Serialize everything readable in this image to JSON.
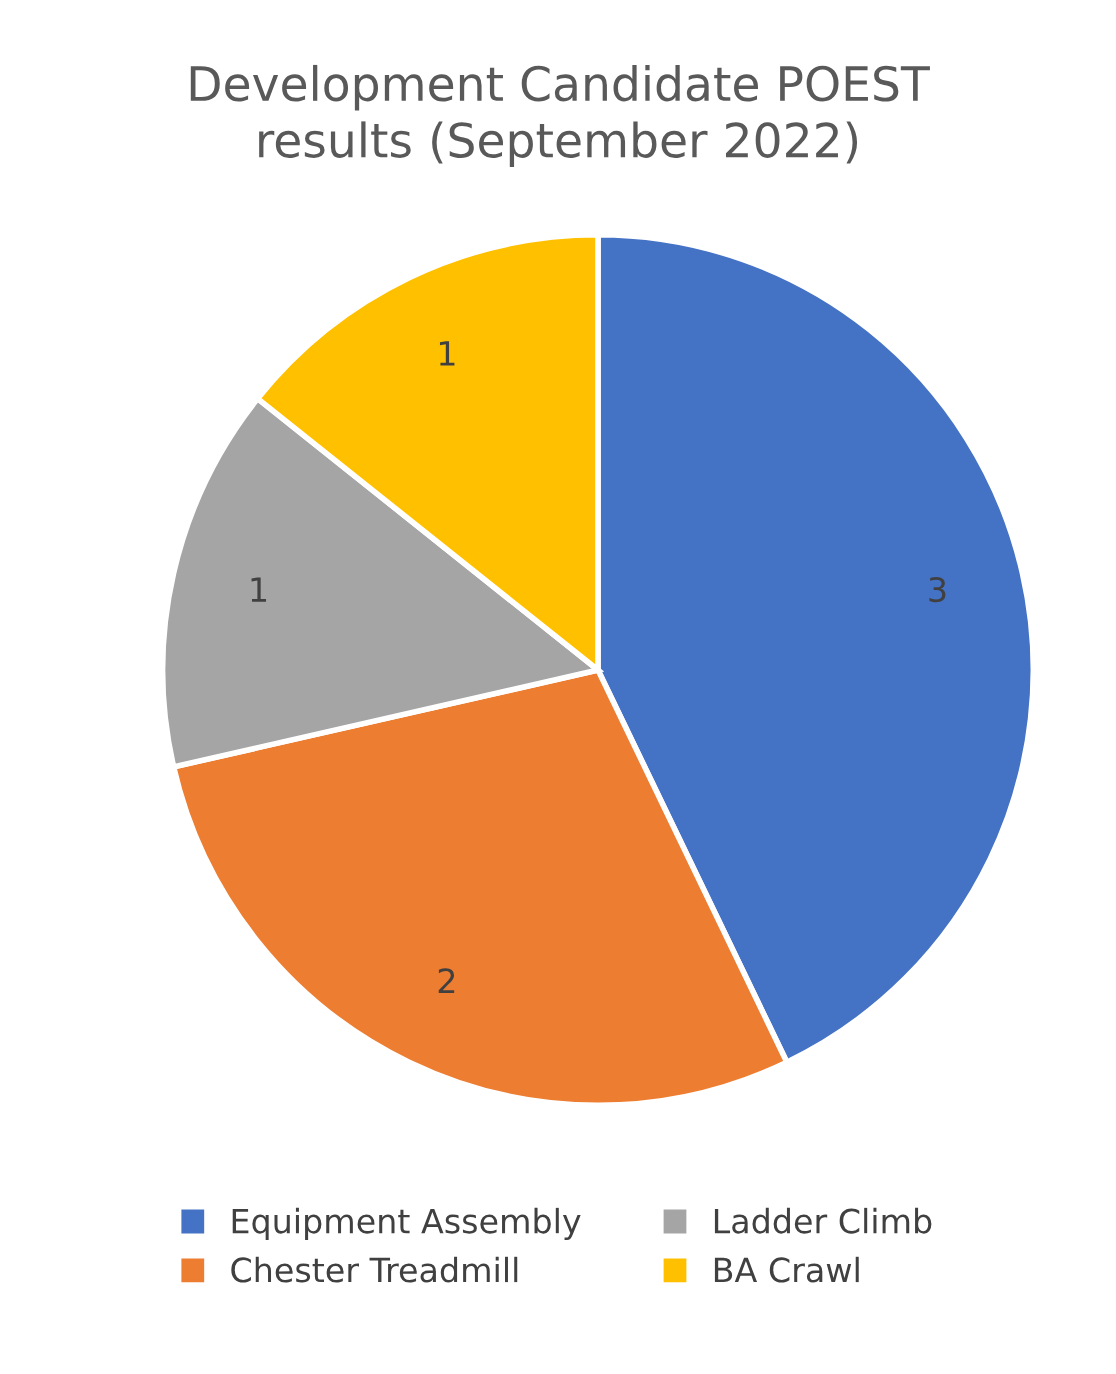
{
  "chart_data": {
    "type": "pie",
    "title": "Development Candidate POEST\nresults (September 2022)",
    "categories": [
      "Equipment Assembly",
      "Chester Treadmill",
      "Ladder Climb",
      "BA Crawl"
    ],
    "values": [
      3,
      2,
      1,
      1
    ],
    "colors": [
      "#4472c4",
      "#ed7d31",
      "#a5a5a5",
      "#ffc000"
    ],
    "data_labels": true,
    "legend": "bottom"
  }
}
